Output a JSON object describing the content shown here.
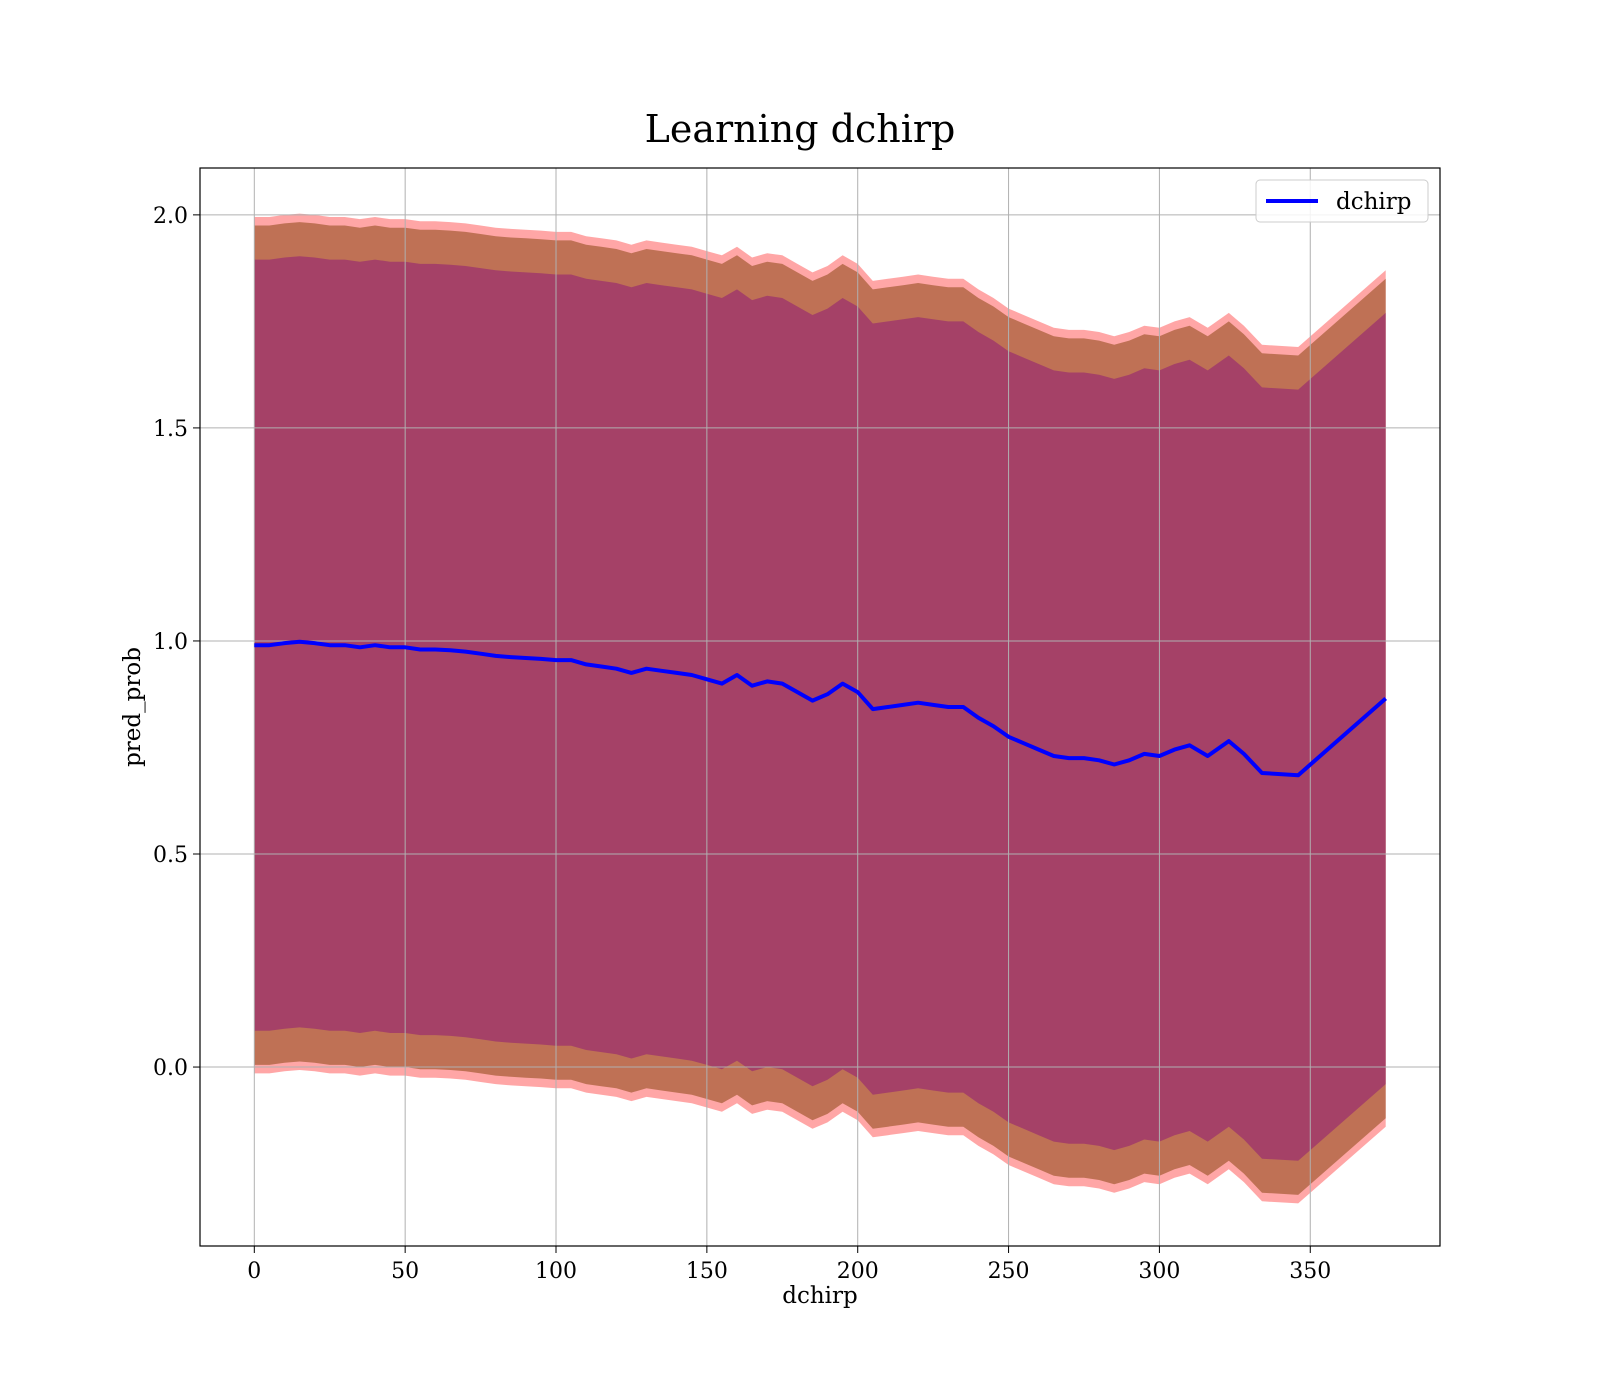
{
  "chart_data": {
    "type": "line",
    "title": "Learning dchirp",
    "xlabel": "dchirp",
    "ylabel": "pred_prob",
    "xlim": [
      -18,
      393
    ],
    "ylim": [
      -0.42,
      2.11
    ],
    "xticks": [
      0,
      50,
      100,
      150,
      200,
      250,
      300,
      350
    ],
    "xtick_labels": [
      "0",
      "50",
      "100",
      "150",
      "200",
      "250",
      "300",
      "350"
    ],
    "yticks": [
      0.0,
      0.5,
      1.0,
      1.5,
      2.0
    ],
    "ytick_labels": [
      "0.0",
      "0.5",
      "1.0",
      "1.5",
      "2.0"
    ],
    "grid": true,
    "legend": {
      "position": "top-right",
      "entries": [
        "dchirp"
      ]
    },
    "colors": {
      "line": "#0000ff",
      "band_inner": "#800080",
      "band_middle": "#8b4513",
      "band_outer": "#ff0000"
    },
    "band_half_widths": [
      0.905,
      0.985,
      1.005
    ],
    "series": [
      {
        "name": "dchirp",
        "x": [
          0,
          5,
          10,
          15,
          20,
          25,
          30,
          35,
          40,
          45,
          50,
          55,
          60,
          65,
          70,
          75,
          80,
          85,
          90,
          95,
          100,
          105,
          110,
          115,
          120,
          125,
          130,
          135,
          140,
          145,
          150,
          155,
          160,
          165,
          170,
          175,
          180,
          185,
          190,
          195,
          200,
          205,
          210,
          215,
          220,
          225,
          230,
          235,
          240,
          245,
          250,
          255,
          260,
          265,
          270,
          275,
          280,
          285,
          290,
          295,
          300,
          305,
          310,
          316,
          323,
          328,
          334,
          346,
          375
        ],
        "y": [
          0.99,
          0.99,
          0.995,
          0.998,
          0.995,
          0.99,
          0.99,
          0.985,
          0.99,
          0.985,
          0.985,
          0.98,
          0.98,
          0.978,
          0.975,
          0.97,
          0.965,
          0.962,
          0.96,
          0.958,
          0.955,
          0.955,
          0.945,
          0.94,
          0.935,
          0.925,
          0.935,
          0.93,
          0.925,
          0.92,
          0.91,
          0.9,
          0.92,
          0.895,
          0.905,
          0.9,
          0.88,
          0.86,
          0.875,
          0.9,
          0.88,
          0.84,
          0.845,
          0.85,
          0.855,
          0.85,
          0.845,
          0.845,
          0.82,
          0.8,
          0.775,
          0.76,
          0.745,
          0.73,
          0.725,
          0.725,
          0.72,
          0.71,
          0.72,
          0.735,
          0.73,
          0.745,
          0.755,
          0.73,
          0.765,
          0.735,
          0.69,
          0.685,
          0.865
        ]
      }
    ]
  }
}
